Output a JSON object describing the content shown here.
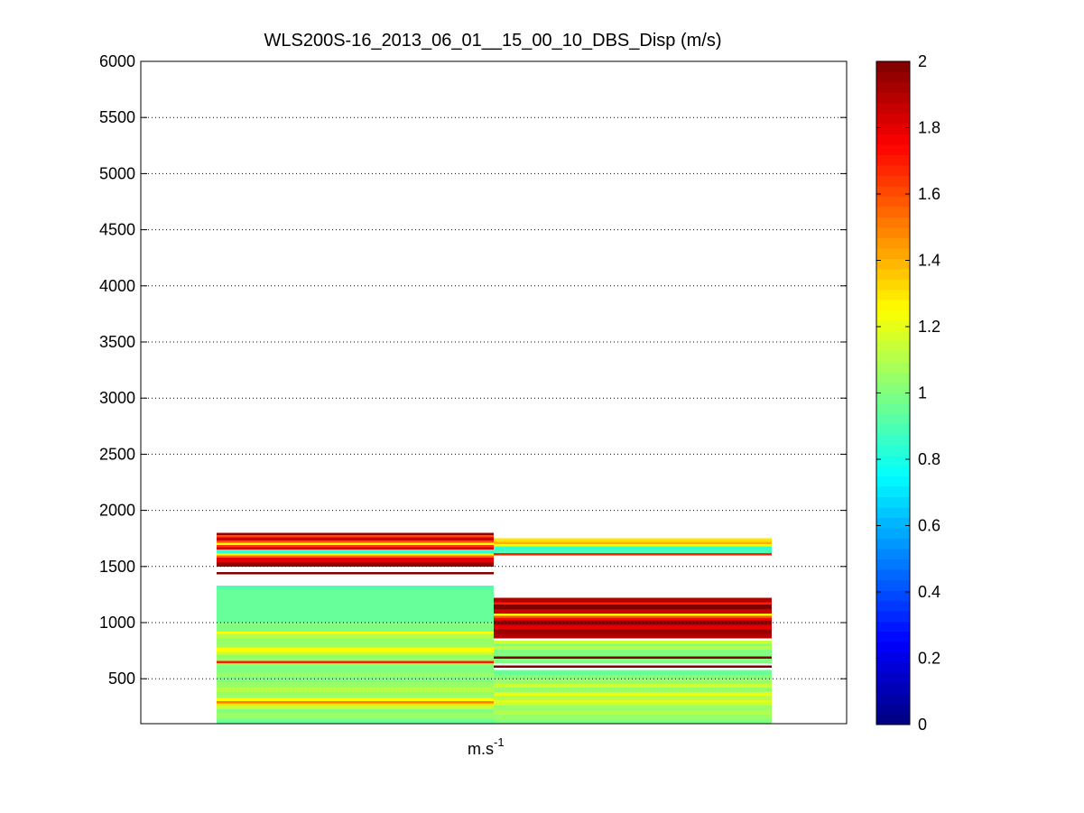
{
  "chart_data": {
    "type": "heatmap",
    "title": "WLS200S-16_2013_06_01__15_00_10_DBS_Disp (m/s)",
    "xlabel_base": "m.s",
    "xlabel_sup": "-1",
    "ylim": [
      100,
      6000
    ],
    "y_ticks": [
      500,
      1000,
      1500,
      2000,
      2500,
      3000,
      3500,
      4000,
      4500,
      5000,
      5500,
      6000
    ],
    "grid": "y-dotted",
    "colormap": "jet",
    "clim": [
      0,
      2
    ],
    "colorbar_ticks": [
      "0",
      "0.2",
      "0.4",
      "0.6",
      "0.8",
      "1",
      "1.2",
      "1.4",
      "1.6",
      "1.8",
      "2"
    ],
    "colorbar_position": "right",
    "bin_height": 20,
    "columns": [
      {
        "bands": [
          {
            "y0": 100,
            "y1": 130,
            "v": 0.95
          },
          {
            "y0": 130,
            "y1": 150,
            "v": 1.0
          },
          {
            "y0": 150,
            "y1": 200,
            "v": 1.05
          },
          {
            "y0": 200,
            "y1": 230,
            "v": 1.0
          },
          {
            "y0": 230,
            "y1": 260,
            "v": 1.15
          },
          {
            "y0": 260,
            "y1": 280,
            "v": 1.3
          },
          {
            "y0": 280,
            "y1": 300,
            "v": 1.5
          },
          {
            "y0": 300,
            "y1": 330,
            "v": 1.25
          },
          {
            "y0": 330,
            "y1": 380,
            "v": 1.05
          },
          {
            "y0": 380,
            "y1": 420,
            "v": 1.1
          },
          {
            "y0": 420,
            "y1": 470,
            "v": 1.05
          },
          {
            "y0": 470,
            "y1": 520,
            "v": 1.0
          },
          {
            "y0": 520,
            "y1": 560,
            "v": 1.05
          },
          {
            "y0": 560,
            "y1": 620,
            "v": 1.0
          },
          {
            "y0": 620,
            "y1": 640,
            "v": 1.05
          },
          {
            "y0": 640,
            "y1": 660,
            "v": 1.7
          },
          {
            "y0": 660,
            "y1": 720,
            "v": 1.05
          },
          {
            "y0": 720,
            "y1": 740,
            "v": 1.15
          },
          {
            "y0": 740,
            "y1": 780,
            "v": 1.25
          },
          {
            "y0": 780,
            "y1": 860,
            "v": 1.05
          },
          {
            "y0": 860,
            "y1": 900,
            "v": 1.1
          },
          {
            "y0": 900,
            "y1": 920,
            "v": 1.25
          },
          {
            "y0": 920,
            "y1": 1000,
            "v": 1.0
          },
          {
            "y0": 1000,
            "y1": 1300,
            "v": 0.95
          },
          {
            "y0": 1300,
            "y1": 1330,
            "v": 0.9
          },
          {
            "y0": 1430,
            "y1": 1450,
            "v": 2.0
          },
          {
            "y0": 1500,
            "y1": 1540,
            "v": 1.95
          },
          {
            "y0": 1540,
            "y1": 1580,
            "v": 1.8
          },
          {
            "y0": 1580,
            "y1": 1600,
            "v": 1.55
          },
          {
            "y0": 1600,
            "y1": 1620,
            "v": 1.25
          },
          {
            "y0": 1620,
            "y1": 1650,
            "v": 0.85
          },
          {
            "y0": 1650,
            "y1": 1670,
            "v": 1.85
          },
          {
            "y0": 1670,
            "y1": 1690,
            "v": 1.65
          },
          {
            "y0": 1690,
            "y1": 1710,
            "v": 1.25
          },
          {
            "y0": 1710,
            "y1": 1730,
            "v": 1.6
          },
          {
            "y0": 1730,
            "y1": 1760,
            "v": 1.85
          },
          {
            "y0": 1760,
            "y1": 1780,
            "v": 1.6
          },
          {
            "y0": 1780,
            "y1": 1800,
            "v": 1.95
          }
        ]
      },
      {
        "bands": [
          {
            "y0": 100,
            "y1": 140,
            "v": 1.0
          },
          {
            "y0": 140,
            "y1": 180,
            "v": 1.05
          },
          {
            "y0": 180,
            "y1": 220,
            "v": 1.1
          },
          {
            "y0": 220,
            "y1": 260,
            "v": 1.05
          },
          {
            "y0": 260,
            "y1": 290,
            "v": 1.15
          },
          {
            "y0": 290,
            "y1": 310,
            "v": 1.2
          },
          {
            "y0": 310,
            "y1": 350,
            "v": 1.1
          },
          {
            "y0": 350,
            "y1": 380,
            "v": 1.2
          },
          {
            "y0": 380,
            "y1": 420,
            "v": 1.05
          },
          {
            "y0": 420,
            "y1": 460,
            "v": 1.15
          },
          {
            "y0": 460,
            "y1": 500,
            "v": 1.05
          },
          {
            "y0": 500,
            "y1": 540,
            "v": 1.0
          },
          {
            "y0": 540,
            "y1": 580,
            "v": 0.95
          },
          {
            "y0": 600,
            "y1": 620,
            "v": 2.0
          },
          {
            "y0": 640,
            "y1": 680,
            "v": 1.0
          },
          {
            "y0": 680,
            "y1": 700,
            "v": 2.0
          },
          {
            "y0": 700,
            "y1": 760,
            "v": 1.0
          },
          {
            "y0": 760,
            "y1": 790,
            "v": 1.1
          },
          {
            "y0": 790,
            "y1": 810,
            "v": 1.0
          },
          {
            "y0": 810,
            "y1": 840,
            "v": 1.15
          },
          {
            "y0": 860,
            "y1": 900,
            "v": 1.9
          },
          {
            "y0": 900,
            "y1": 940,
            "v": 1.95
          },
          {
            "y0": 940,
            "y1": 980,
            "v": 1.8
          },
          {
            "y0": 980,
            "y1": 1020,
            "v": 1.95
          },
          {
            "y0": 1020,
            "y1": 1040,
            "v": 1.75
          },
          {
            "y0": 1040,
            "y1": 1060,
            "v": 1.6
          },
          {
            "y0": 1060,
            "y1": 1080,
            "v": 1.25
          },
          {
            "y0": 1080,
            "y1": 1120,
            "v": 1.85
          },
          {
            "y0": 1120,
            "y1": 1160,
            "v": 2.0
          },
          {
            "y0": 1160,
            "y1": 1180,
            "v": 1.7
          },
          {
            "y0": 1180,
            "y1": 1220,
            "v": 1.9
          },
          {
            "y0": 1600,
            "y1": 1620,
            "v": 1.7
          },
          {
            "y0": 1620,
            "y1": 1650,
            "v": 0.9
          },
          {
            "y0": 1650,
            "y1": 1680,
            "v": 0.85
          },
          {
            "y0": 1680,
            "y1": 1700,
            "v": 1.25
          },
          {
            "y0": 1700,
            "y1": 1720,
            "v": 1.4
          },
          {
            "y0": 1720,
            "y1": 1750,
            "v": 1.3
          }
        ]
      }
    ]
  }
}
